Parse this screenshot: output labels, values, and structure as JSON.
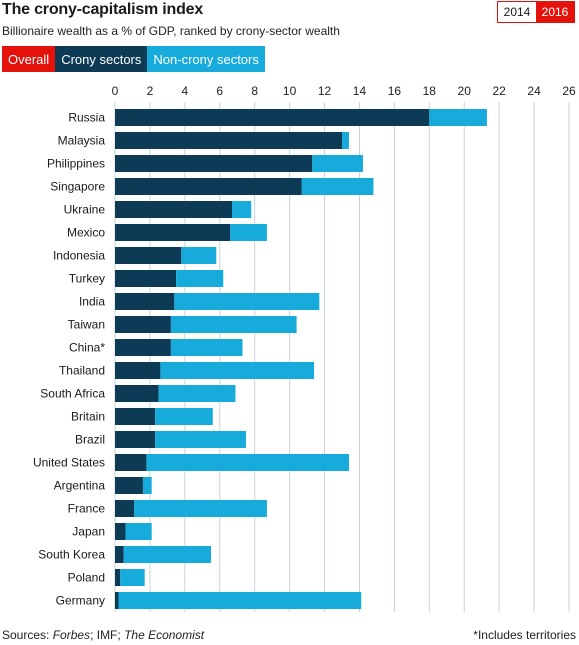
{
  "header": {
    "title": "The crony-capitalism index",
    "subtitle": "Billionaire wealth as a % of GDP, ranked by crony-sector wealth"
  },
  "year_toggle": {
    "years": [
      "2014",
      "2016"
    ],
    "selected": "2016"
  },
  "tabs": {
    "overall": "Overall",
    "crony": "Crony sectors",
    "noncrony": "Non-crony sectors"
  },
  "colors": {
    "crony": "#0d3a54",
    "noncrony": "#17abdc",
    "accent": "#e3120b",
    "grid": "#c9d3da"
  },
  "footer": {
    "source_prefix": "Sources: ",
    "source_forbes": "Forbes",
    "source_mid": "; IMF; ",
    "source_economist": "The Economist",
    "footnote": "*Includes territories"
  },
  "chart_data": {
    "type": "bar",
    "orientation": "horizontal",
    "stacked": true,
    "xlim": [
      0,
      26
    ],
    "xticks": [
      0,
      2,
      4,
      6,
      8,
      10,
      12,
      14,
      16,
      18,
      20,
      22,
      24,
      26
    ],
    "grid": true,
    "categories": [
      "Russia",
      "Malaysia",
      "Philippines",
      "Singapore",
      "Ukraine",
      "Mexico",
      "Indonesia",
      "Turkey",
      "India",
      "Taiwan",
      "China*",
      "Thailand",
      "South Africa",
      "Britain",
      "Brazil",
      "United States",
      "Argentina",
      "France",
      "Japan",
      "South Korea",
      "Poland",
      "Germany"
    ],
    "series": [
      {
        "name": "Crony sectors",
        "values": [
          18.0,
          13.0,
          11.3,
          10.7,
          6.7,
          6.6,
          3.8,
          3.5,
          3.4,
          3.2,
          3.2,
          2.6,
          2.5,
          2.3,
          2.3,
          1.8,
          1.6,
          1.1,
          0.6,
          0.5,
          0.3,
          0.2
        ]
      },
      {
        "name": "Non-crony sectors",
        "values": [
          3.3,
          0.4,
          2.9,
          4.1,
          1.1,
          2.1,
          2.0,
          2.7,
          8.3,
          7.2,
          4.1,
          8.8,
          4.4,
          3.3,
          5.2,
          11.6,
          0.5,
          7.6,
          1.5,
          5.0,
          1.4,
          13.9
        ]
      }
    ]
  }
}
